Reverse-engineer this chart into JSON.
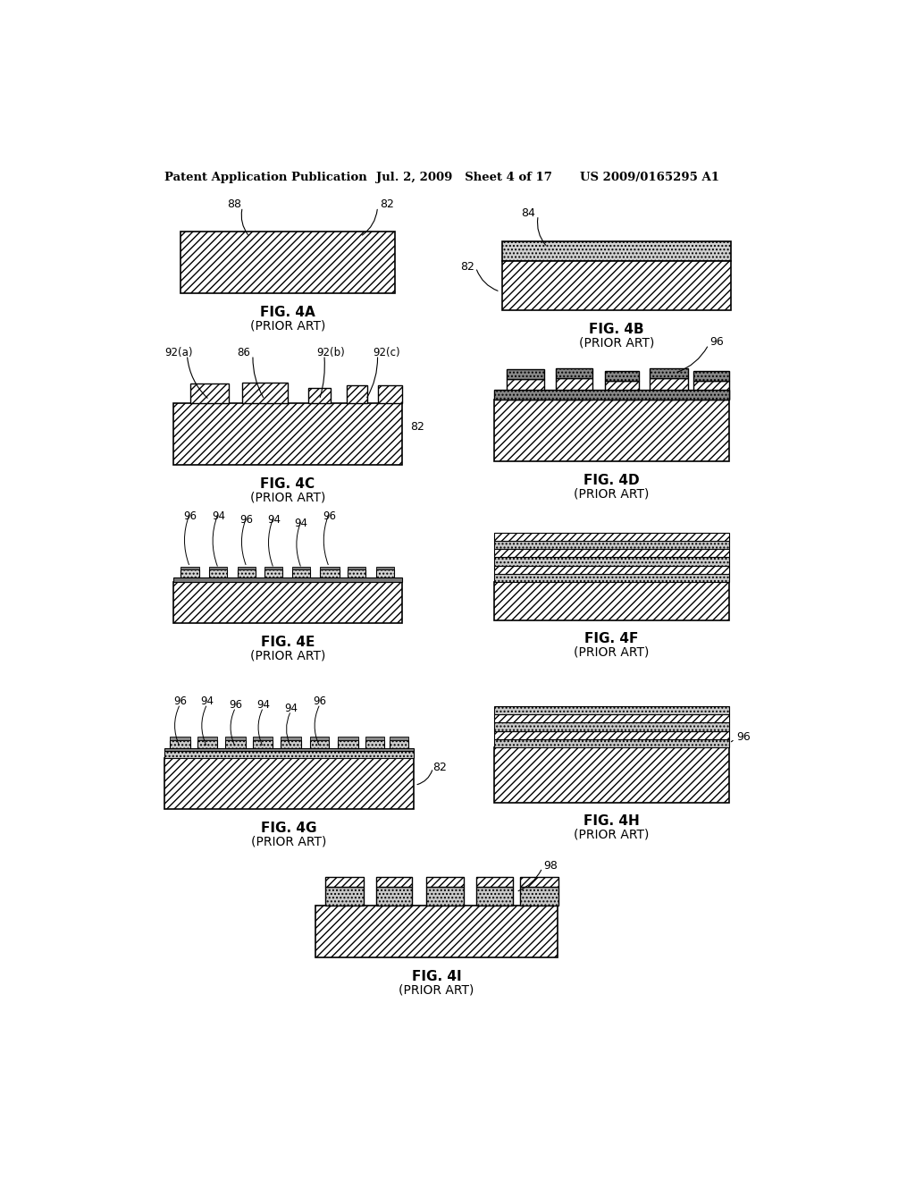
{
  "bg_color": "#ffffff",
  "header_left": "Patent Application Publication",
  "header_mid": "Jul. 2, 2009   Sheet 4 of 17",
  "header_right": "US 2009/0165295 A1",
  "hatch_diag": "////",
  "hatch_dot": "....",
  "hatch_cross": "xxxx"
}
